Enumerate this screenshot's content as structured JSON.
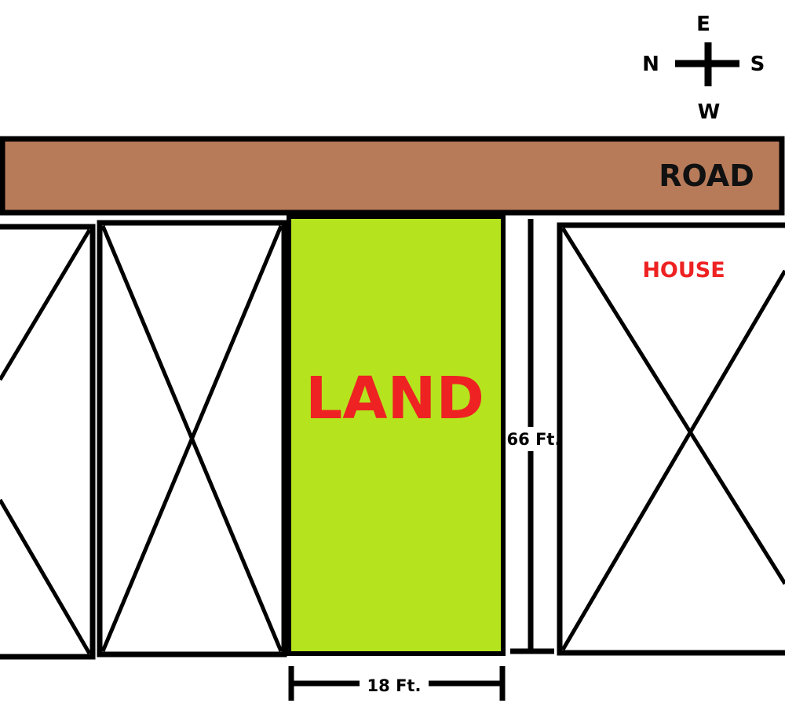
{
  "compass": {
    "north": "N",
    "east": "E",
    "south": "S",
    "west": "W"
  },
  "road": {
    "label": "ROAD",
    "color": "#b87b5a"
  },
  "land": {
    "label": "LAND",
    "color": "#b5e41e"
  },
  "house": {
    "label": "HOUSE"
  },
  "dimensions": {
    "width_label": "18 Ft.",
    "depth_label": "66 Ft."
  },
  "colors": {
    "label_red": "#ee2222",
    "outline": "#000000"
  }
}
